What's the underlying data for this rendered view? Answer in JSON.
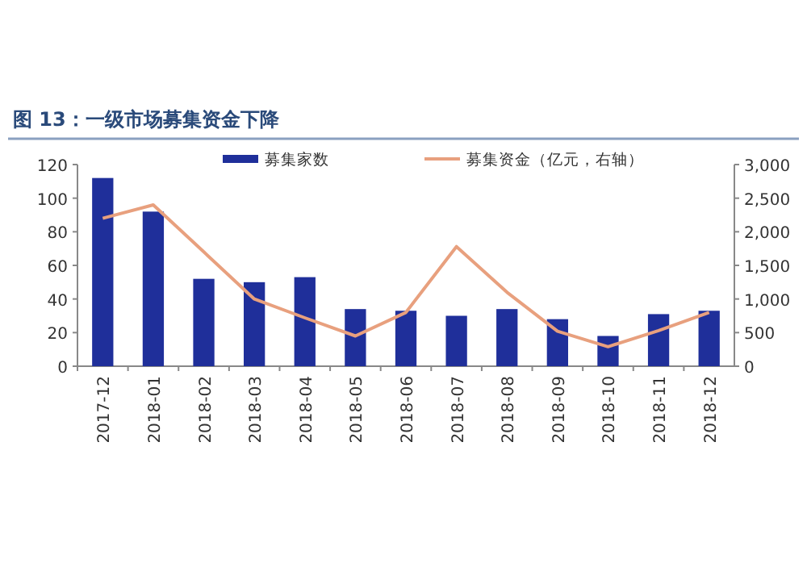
{
  "chart_data": {
    "type": "bar",
    "title": "图 13：一级市场募集资金下降",
    "categories": [
      "2017-12",
      "2018-01",
      "2018-02",
      "2018-03",
      "2018-04",
      "2018-05",
      "2018-06",
      "2018-07",
      "2018-08",
      "2018-09",
      "2018-10",
      "2018-11",
      "2018-12"
    ],
    "series": [
      {
        "name": "募集家数",
        "color": "#1f2f9a",
        "values": [
          112,
          92,
          52,
          50,
          53,
          34,
          33,
          30,
          34,
          28,
          18,
          31,
          33
        ]
      },
      {
        "name": "募集资金（亿元，右轴）",
        "type": "line",
        "axis": "y2",
        "color": "#e8a07e",
        "values": [
          2200,
          2400,
          1700,
          1000,
          720,
          450,
          800,
          1780,
          1100,
          520,
          290,
          530,
          800
        ]
      }
    ],
    "ylim": [
      0,
      120
    ],
    "yticks": [
      0,
      20,
      40,
      60,
      80,
      100,
      120
    ],
    "y2lim": [
      0,
      3000
    ],
    "y2ticks": [
      0,
      {
        "value": 500,
        "label": "500"
      },
      {
        "value": 1000,
        "label": "1,000"
      },
      {
        "value": 1500,
        "label": "1,500"
      },
      {
        "value": 2000,
        "label": "2,000"
      },
      {
        "value": 2500,
        "label": "2,500"
      },
      {
        "value": 3000,
        "label": "3,000"
      }
    ],
    "legend": "top",
    "grid": false
  }
}
